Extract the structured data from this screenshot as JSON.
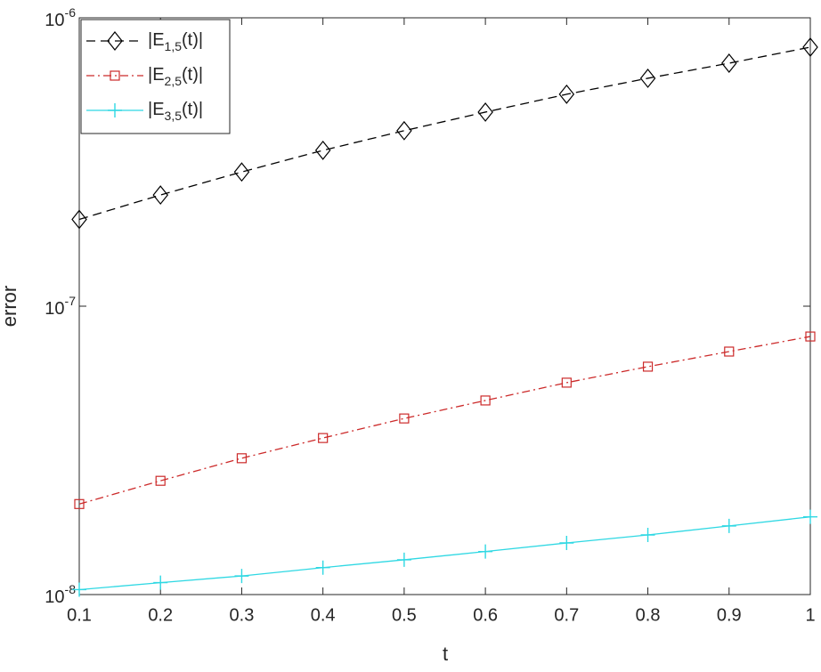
{
  "chart_data": {
    "type": "line",
    "x_label": "t",
    "y_label": "error",
    "x": [
      0.1,
      0.2,
      0.3,
      0.4,
      0.5,
      0.6,
      0.7,
      0.8,
      0.9,
      1
    ],
    "series": [
      {
        "name": "|E_{1,5}(t)|",
        "color": "#000000",
        "dash": "10,6",
        "marker": "diamond",
        "values": [
          2e-07,
          2.43e-07,
          2.92e-07,
          3.47e-07,
          4.06e-07,
          4.71e-07,
          5.43e-07,
          6.17e-07,
          6.96e-07,
          7.91e-07
        ]
      },
      {
        "name": "|E_{2,5}(t)|",
        "color": "#cc2a2a",
        "dash": "9,4,2,4",
        "marker": "square",
        "values": [
          2.06e-08,
          2.48e-08,
          2.97e-08,
          3.49e-08,
          4.08e-08,
          4.71e-08,
          5.43e-08,
          6.17e-08,
          6.96e-08,
          7.85e-08
        ]
      },
      {
        "name": "|E_{3,5}(t)|",
        "color": "#2fd8e3",
        "dash": "none",
        "marker": "plus",
        "values": [
          1.04e-08,
          1.1e-08,
          1.16e-08,
          1.24e-08,
          1.32e-08,
          1.41e-08,
          1.51e-08,
          1.61e-08,
          1.73e-08,
          1.86e-08
        ]
      }
    ],
    "xlim": [
      0.1,
      1
    ],
    "xticks": [
      0.1,
      0.2,
      0.3,
      0.4,
      0.5,
      0.6,
      0.7,
      0.8,
      0.9,
      1
    ],
    "ylim": [
      1e-08,
      1e-06
    ],
    "y_scale": "log",
    "yticks": [
      {
        "value": 1e-08,
        "label": "10^-8"
      },
      {
        "value": 1e-07,
        "label": "10^-7"
      },
      {
        "value": 1e-06,
        "label": "10^-6"
      }
    ],
    "legend": "top-left",
    "grid": false
  }
}
